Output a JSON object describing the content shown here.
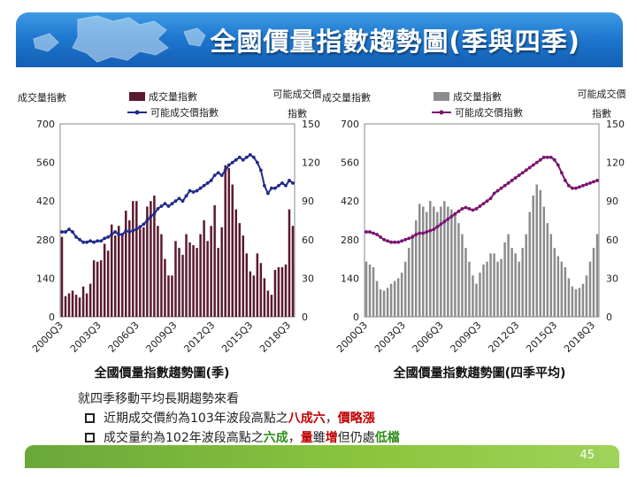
{
  "slide": {
    "title": "全國價量指數趨勢圖(季與四季)",
    "page_number": "45",
    "notes": {
      "heading": "就四季移動平均長期趨勢來看",
      "bullet1": {
        "a": "近期成交價約為103年波段高點之",
        "b": "八成六",
        "c": "，",
        "d": "價略漲"
      },
      "bullet2": {
        "a": "成交量約為102年波段高點之",
        "b": "六成",
        "c": "，",
        "d": "量",
        "e": "雖",
        "f": "增",
        "g": "但仍處",
        "h": "低檔"
      }
    }
  },
  "chart_data": [
    {
      "type": "bar+line",
      "title": "全國價量指數趨勢圖(季)",
      "left_axis_label": "成交量指數",
      "right_axis_label_line1": "可能成交價",
      "right_axis_label_line2": "指數",
      "left_ylim": [
        0,
        700
      ],
      "left_ticks": [
        "0",
        "140",
        "280",
        "420",
        "560",
        "700"
      ],
      "right_ylim": [
        0,
        150
      ],
      "right_ticks": [
        "0",
        "30",
        "60",
        "90",
        "120",
        "150"
      ],
      "x_tick_labels": [
        "2000Q3",
        "2003Q3",
        "2006Q3",
        "2009Q3",
        "2012Q3",
        "2015Q3",
        "2018Q3"
      ],
      "legend": [
        {
          "name": "成交量指數",
          "kind": "bar",
          "color": "#5a1a2e"
        },
        {
          "name": "可能成交價指數",
          "kind": "line",
          "color": "#1f2a8a"
        }
      ],
      "series": [
        {
          "name": "成交量指數",
          "values": [
            290,
            75,
            85,
            95,
            80,
            70,
            110,
            85,
            120,
            205,
            200,
            205,
            265,
            240,
            335,
            295,
            330,
            295,
            385,
            350,
            420,
            420,
            320,
            325,
            400,
            420,
            440,
            330,
            300,
            210,
            150,
            150,
            275,
            250,
            225,
            300,
            270,
            260,
            250,
            300,
            350,
            275,
            330,
            405,
            250,
            325,
            550,
            540,
            480,
            390,
            340,
            295,
            230,
            165,
            150,
            230,
            195,
            140,
            95,
            80,
            170,
            180,
            180,
            190,
            390,
            330
          ]
        },
        {
          "name": "可能成交價指數",
          "values": [
            66,
            66,
            68,
            66,
            62,
            60,
            58,
            58,
            59,
            58,
            59,
            59,
            61,
            62,
            64,
            66,
            64,
            64,
            67,
            66,
            67,
            68,
            70,
            72,
            75,
            78,
            80,
            84,
            86,
            88,
            86,
            88,
            90,
            92,
            90,
            94,
            98,
            97,
            98,
            100,
            102,
            104,
            106,
            110,
            112,
            110,
            114,
            118,
            120,
            122,
            124,
            122,
            124,
            126,
            124,
            120,
            114,
            102,
            96,
            100,
            100,
            102,
            104,
            102,
            106,
            104
          ]
        }
      ]
    },
    {
      "type": "bar+line",
      "title": "全國價量指數趨勢圖(四季平均)",
      "left_axis_label": "成交量指數",
      "right_axis_label_line1": "可能成交價",
      "right_axis_label_line2": "指數",
      "left_ylim": [
        0,
        700
      ],
      "left_ticks": [
        "0",
        "140",
        "280",
        "420",
        "560",
        "700"
      ],
      "right_ylim": [
        0,
        150
      ],
      "right_ticks": [
        "0",
        "30",
        "60",
        "90",
        "120",
        "150"
      ],
      "x_tick_labels": [
        "2000Q3",
        "2003Q3",
        "2006Q3",
        "2009Q3",
        "2012Q3",
        "2015Q3",
        "2018Q3"
      ],
      "legend": [
        {
          "name": "成交量指數",
          "kind": "bar",
          "color": "#8c8c8c"
        },
        {
          "name": "可能成交價指數",
          "kind": "line",
          "color": "#7a1470"
        }
      ],
      "series": [
        {
          "name": "成交量指數",
          "values": [
            200,
            190,
            180,
            130,
            100,
            95,
            105,
            120,
            130,
            140,
            160,
            200,
            250,
            300,
            350,
            410,
            400,
            380,
            420,
            400,
            380,
            400,
            420,
            400,
            390,
            380,
            340,
            300,
            250,
            200,
            150,
            120,
            160,
            190,
            200,
            230,
            230,
            200,
            210,
            270,
            300,
            250,
            230,
            200,
            250,
            300,
            380,
            440,
            480,
            460,
            400,
            340,
            300,
            250,
            220,
            200,
            180,
            140,
            110,
            100,
            105,
            120,
            150,
            200,
            250,
            300
          ]
        },
        {
          "name": "可能成交價指數",
          "values": [
            66,
            66,
            65,
            64,
            62,
            60,
            59,
            58,
            58,
            58,
            59,
            60,
            61,
            62,
            64,
            65,
            65,
            66,
            67,
            68,
            70,
            72,
            74,
            76,
            78,
            80,
            82,
            84,
            85,
            84,
            83,
            84,
            86,
            88,
            90,
            92,
            96,
            98,
            100,
            102,
            104,
            106,
            108,
            110,
            112,
            114,
            116,
            118,
            120,
            122,
            124,
            124,
            124,
            122,
            118,
            112,
            106,
            102,
            100,
            100,
            101,
            102,
            103,
            104,
            105,
            106
          ]
        }
      ]
    }
  ]
}
